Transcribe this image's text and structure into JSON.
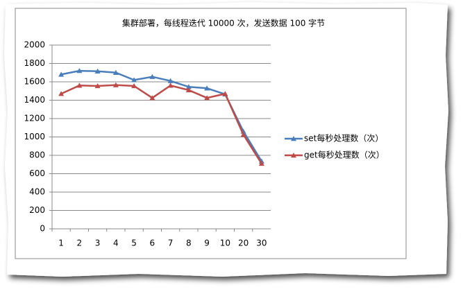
{
  "chart_data": {
    "type": "line",
    "title": "集群部署，每线程迭代 10000 次，发送数据 100 字节",
    "categories": [
      "1",
      "2",
      "3",
      "4",
      "5",
      "6",
      "7",
      "8",
      "9",
      "10",
      "20",
      "30"
    ],
    "series": [
      {
        "name": "set每秒处理数（次）",
        "color": "#4a7ebb",
        "values": [
          1680,
          1720,
          1715,
          1700,
          1620,
          1655,
          1610,
          1545,
          1530,
          1465,
          1060,
          735
        ]
      },
      {
        "name": "get每秒处理数（次）",
        "color": "#be4b48",
        "values": [
          1470,
          1560,
          1555,
          1565,
          1555,
          1425,
          1560,
          1510,
          1425,
          1470,
          1025,
          710
        ]
      }
    ],
    "ylim": [
      0,
      2000
    ],
    "yticks": [
      0,
      200,
      400,
      600,
      800,
      1000,
      1200,
      1400,
      1600,
      1800,
      2000
    ],
    "grid": true
  }
}
